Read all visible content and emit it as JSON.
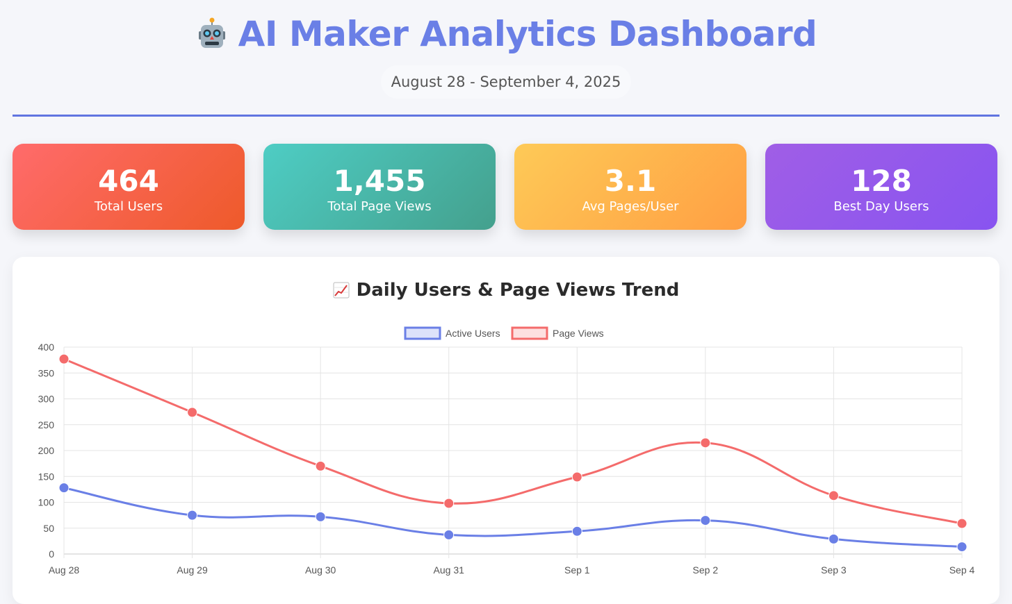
{
  "header": {
    "title": "AI Maker Analytics Dashboard",
    "icon": "robot-icon",
    "date_range": "August 28 - September 4, 2025"
  },
  "stats": [
    {
      "value": "464",
      "label": "Total Users"
    },
    {
      "value": "1,455",
      "label": "Total Page Views"
    },
    {
      "value": "3.1",
      "label": "Avg Pages/User"
    },
    {
      "value": "128",
      "label": "Best Day Users"
    }
  ],
  "colors": {
    "accent": "#6074e0",
    "active_users": "#6a7fe6",
    "page_views": "#f46b6b"
  },
  "chart": {
    "title": "Daily Users & Page Views Trend",
    "icon": "chart-increasing-icon"
  },
  "chart_data": {
    "type": "line",
    "categories": [
      "Aug 28",
      "Aug 29",
      "Aug 30",
      "Aug 31",
      "Sep 1",
      "Sep 2",
      "Sep 3",
      "Sep 4"
    ],
    "series": [
      {
        "name": "Active Users",
        "values": [
          128,
          75,
          72,
          37,
          44,
          65,
          29,
          14
        ]
      },
      {
        "name": "Page Views",
        "values": [
          377,
          274,
          170,
          98,
          149,
          215,
          113,
          59
        ]
      }
    ],
    "yticks": [
      0,
      50,
      100,
      150,
      200,
      250,
      300,
      350,
      400
    ],
    "ylim": [
      0,
      400
    ],
    "legend": "top-center",
    "grid": true,
    "smooth": true
  }
}
